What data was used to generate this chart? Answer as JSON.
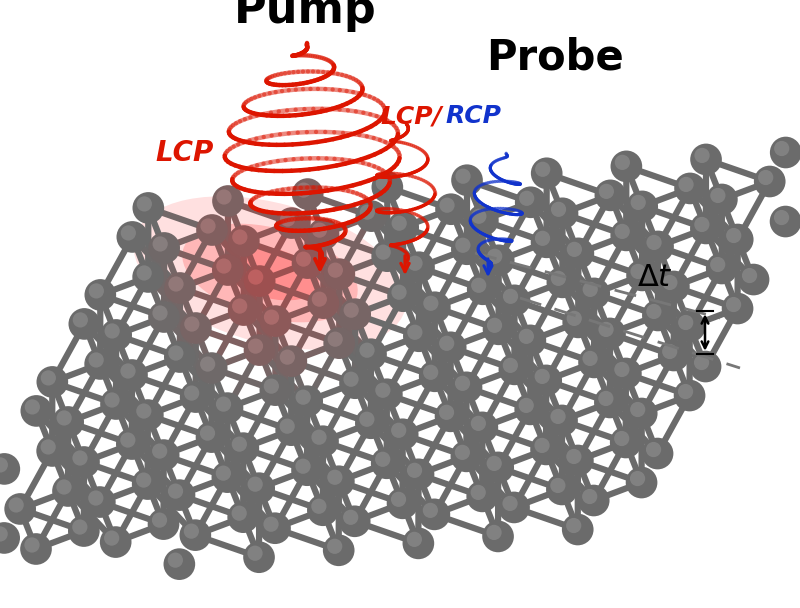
{
  "bg_color": "#ffffff",
  "pump_color": "#dd1500",
  "probe_red_color": "#dd1500",
  "probe_blue_color": "#1133cc",
  "graphene_node_color_dark": "#6a6a6a",
  "graphene_node_color_warm": "#9a7878",
  "graphene_bond_color_dark": "#707070",
  "graphene_bond_color_warm": "#907070",
  "pump_label": "Pump",
  "probe_label": "Probe",
  "lcp_label": "LCP",
  "lcp_rcp_red": "LCP/",
  "lcp_rcp_blue": "RCP",
  "delta_t": "Δt"
}
